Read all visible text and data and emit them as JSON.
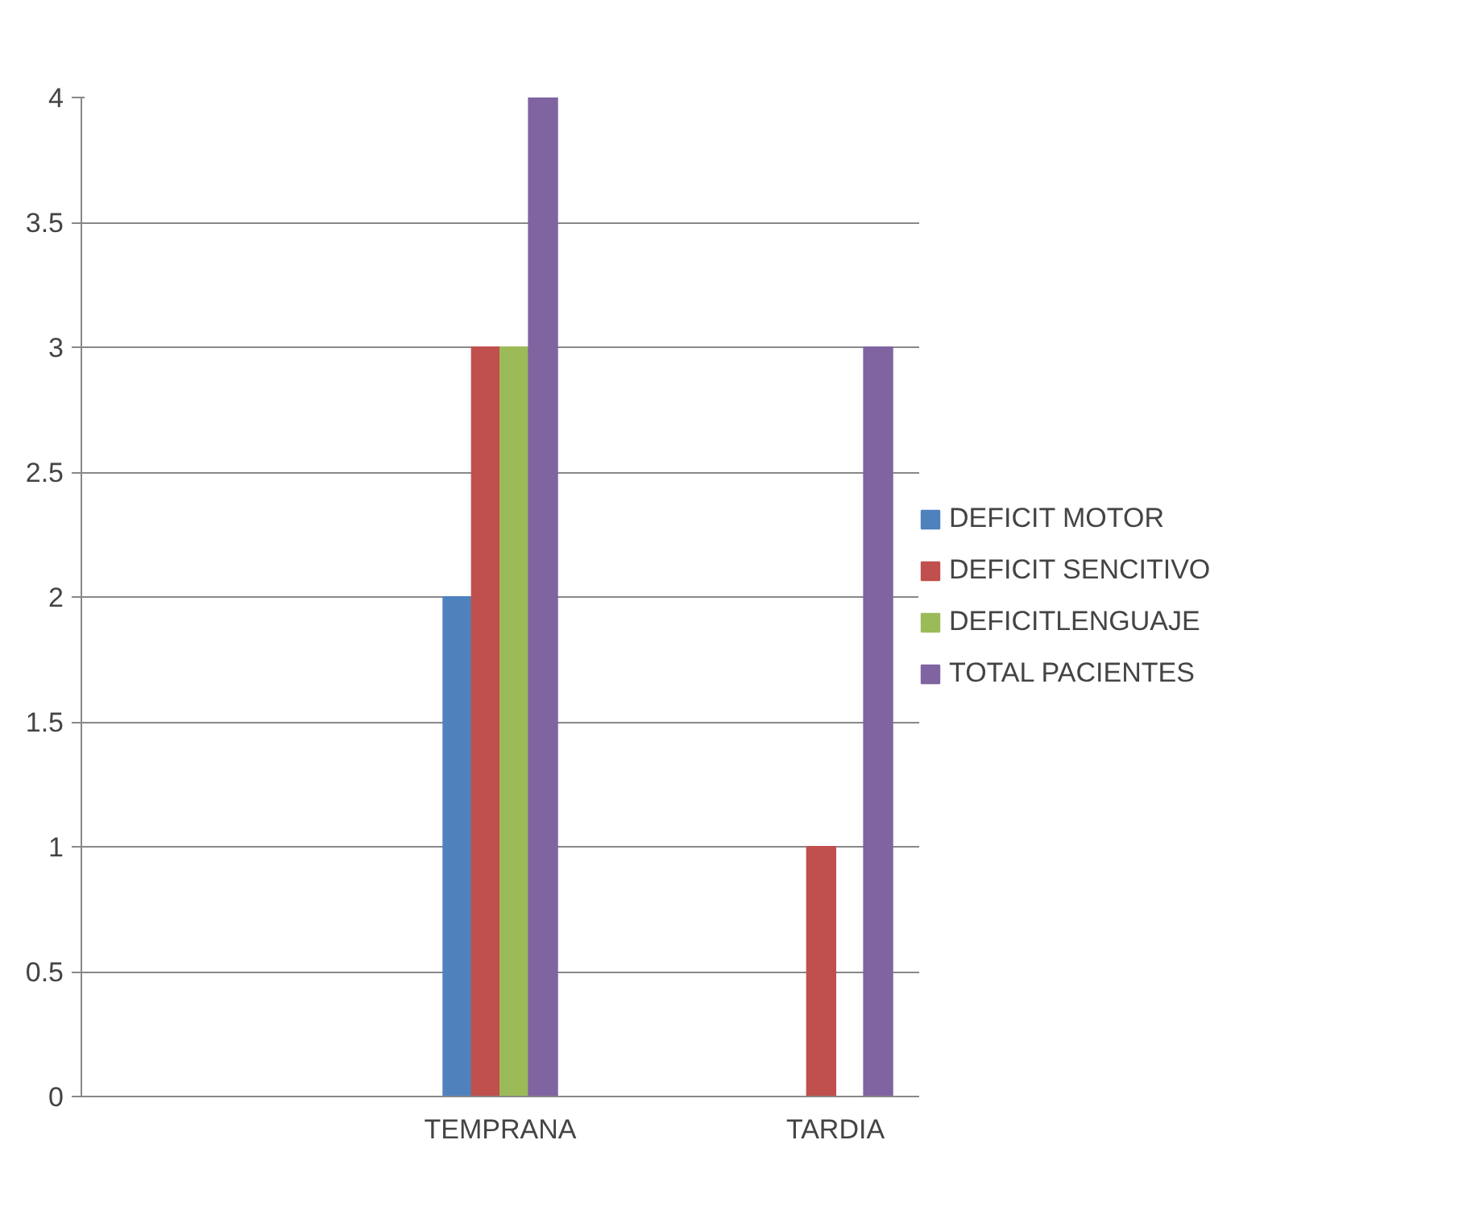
{
  "chart_data": {
    "type": "bar",
    "categories": [
      null,
      null,
      "TEMPRANA",
      null,
      "TARDIA"
    ],
    "series": [
      {
        "name": "DEFICIT MOTOR",
        "color": "#4f81bd",
        "values": [
          null,
          null,
          2,
          null,
          0
        ]
      },
      {
        "name": "DEFICIT SENCITIVO",
        "color": "#c0504d",
        "values": [
          null,
          null,
          3,
          null,
          1
        ]
      },
      {
        "name": "DEFICITLENGUAJE",
        "color": "#9bbb59",
        "values": [
          null,
          null,
          3,
          null,
          0
        ]
      },
      {
        "name": "TOTAL PACIENTES",
        "color": "#8064a2",
        "values": [
          null,
          null,
          4,
          null,
          3
        ]
      }
    ],
    "ylim": [
      0,
      4
    ],
    "yticks": [
      0,
      0.5,
      1,
      1.5,
      2,
      2.5,
      3,
      3.5,
      4
    ],
    "grid": "y",
    "legend": "right"
  }
}
